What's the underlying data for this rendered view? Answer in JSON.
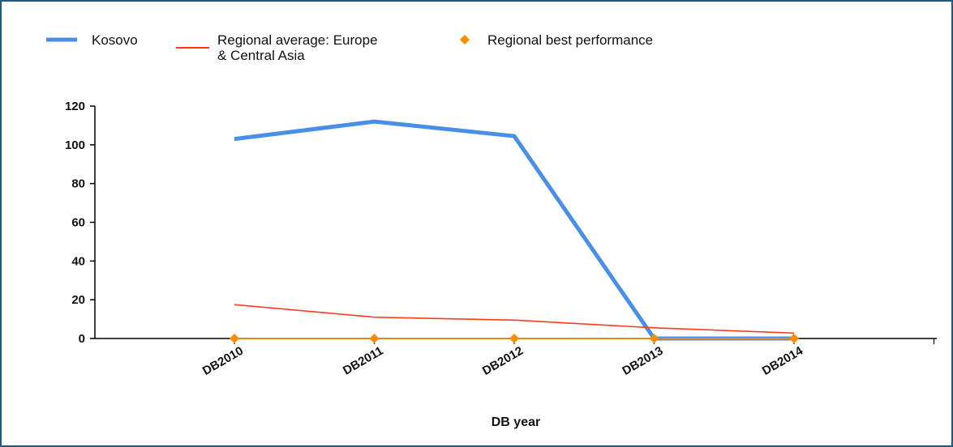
{
  "chart_data": {
    "type": "line",
    "title": "",
    "xlabel": "DB year",
    "ylabel": "",
    "categories": [
      "DB2010",
      "DB2011",
      "DB2012",
      "DB2013",
      "DB2014"
    ],
    "ylim": [
      0,
      120
    ],
    "yticks": [
      0,
      20,
      40,
      60,
      80,
      100,
      120
    ],
    "grid": false,
    "legend_position": "top",
    "series": [
      {
        "name": "Kosovo",
        "values": [
          103,
          112,
          104.5,
          0,
          0
        ],
        "color": "#4a8fe7",
        "style": "thick-line"
      },
      {
        "name": "Regional average: Europe & Central Asia",
        "values": [
          17.5,
          11,
          9.5,
          5.5,
          2.8
        ],
        "color": "#ff3b1f",
        "style": "thin-line"
      },
      {
        "name": "Regional best performance",
        "values": [
          0,
          0,
          0,
          0,
          0
        ],
        "color": "#ff8c00",
        "style": "diamond-markers"
      }
    ]
  },
  "legend": {
    "items": [
      {
        "label_lines": [
          "Kosovo"
        ]
      },
      {
        "label_lines": [
          "Regional average: Europe",
          "& Central Asia"
        ]
      },
      {
        "label_lines": [
          "Regional best performance"
        ]
      }
    ]
  }
}
